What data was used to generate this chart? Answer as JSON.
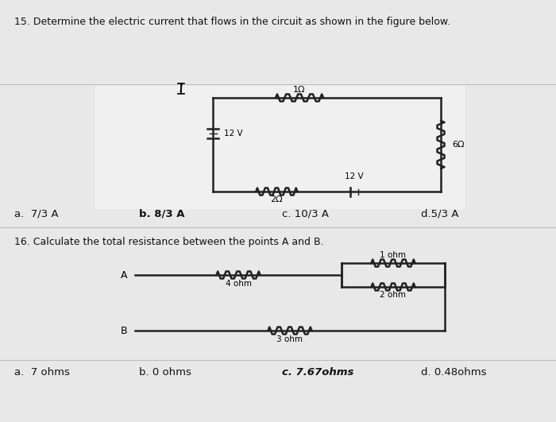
{
  "bg_color": "#e8e8e8",
  "white_panel_color": "#f5f5f5",
  "text_color": "#111111",
  "q15_text": "15. Determine the electric current that flows in the circuit as shown in the figure below.",
  "q16_text": "16. Calculate the total resistance between the points A and B.",
  "q15_options": [
    "a.  7/3 A",
    "b. 8/3 A",
    "c. 10/3 A",
    "d.5/3 A"
  ],
  "q15_bold": [
    1
  ],
  "q16_options": [
    "a.  7 ohms",
    "b. 0 ohms",
    "c. 7.67ohms",
    "d. 0.48ohms"
  ],
  "q16_bold": [
    2
  ],
  "divider_color": "#bbbbbb",
  "circuit_line_color": "#222222",
  "circuit_lw": 1.8
}
